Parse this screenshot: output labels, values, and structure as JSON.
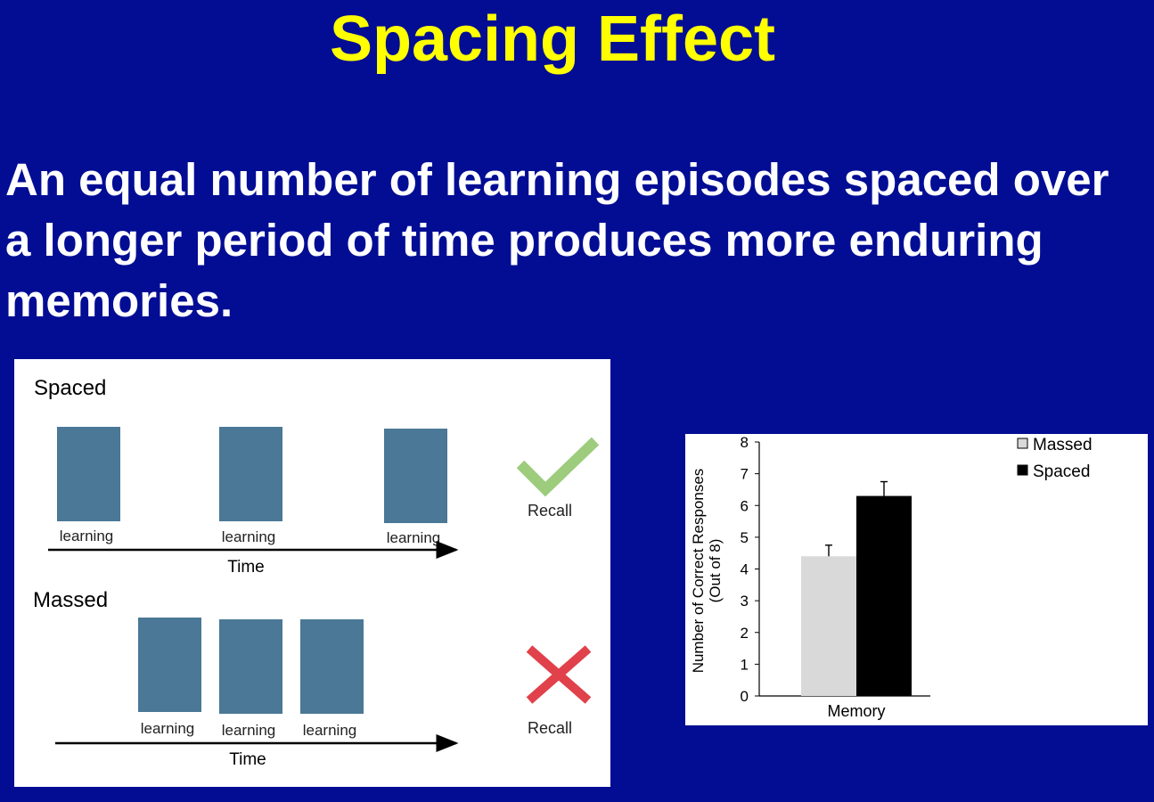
{
  "slide": {
    "title": "Spacing Effect",
    "body": "An equal number of learning episodes spaced over a longer period of time produces more enduring memories."
  },
  "diagram": {
    "spaced": {
      "heading": "Spaced",
      "episodes": [
        "learning",
        "learning",
        "learning"
      ],
      "axis_label": "Time",
      "outcome": "Recall",
      "outcome_icon": "check-icon"
    },
    "massed": {
      "heading": "Massed",
      "episodes": [
        "learning",
        "learning",
        "learning"
      ],
      "axis_label": "Time",
      "outcome": "Recall",
      "outcome_icon": "cross-icon"
    },
    "colors": {
      "block": "#4a7896",
      "check": "#9ccc7c",
      "cross": "#e0414a"
    }
  },
  "chart_data": {
    "type": "bar",
    "title": "",
    "categories": [
      "Memory"
    ],
    "xlabel": "",
    "ylabel": "Number of Correct Responses (Out of 8)",
    "ylim": [
      0,
      8
    ],
    "yticks": [
      0,
      1,
      2,
      3,
      4,
      5,
      6,
      7,
      8
    ],
    "grid": false,
    "legend": "top-right",
    "series": [
      {
        "name": "Massed",
        "values": [
          4.4
        ],
        "error": [
          0.35
        ],
        "color": "#d9d9d9"
      },
      {
        "name": "Spaced",
        "values": [
          6.3
        ],
        "error": [
          0.45
        ],
        "color": "#000000"
      }
    ]
  }
}
